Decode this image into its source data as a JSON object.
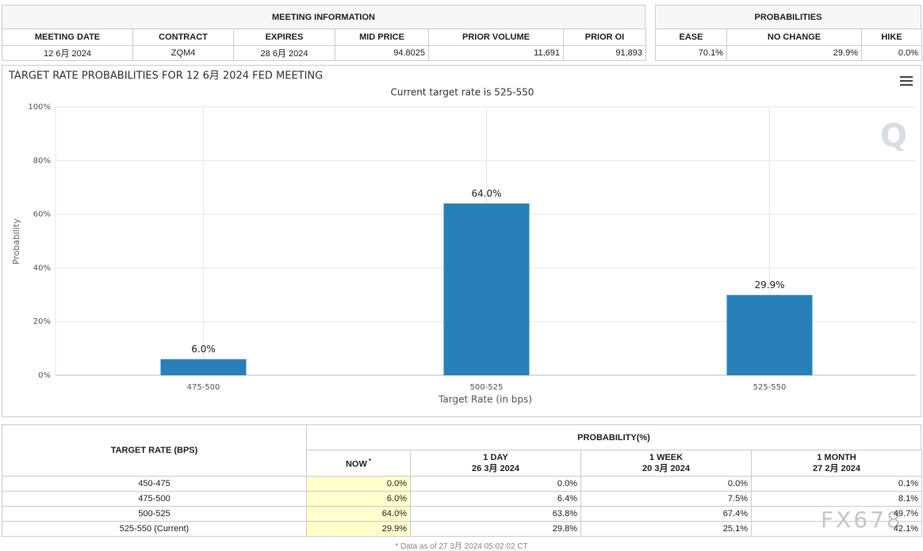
{
  "meeting_info": {
    "title": "MEETING INFORMATION",
    "headers": [
      "MEETING DATE",
      "CONTRACT",
      "EXPIRES",
      "MID PRICE",
      "PRIOR VOLUME",
      "PRIOR OI"
    ],
    "row": [
      "12 6月 2024",
      "ZQM4",
      "28 6月 2024",
      "94.8025",
      "11,691",
      "91,893"
    ]
  },
  "probabilities": {
    "title": "PROBABILITIES",
    "headers": [
      "EASE",
      "NO CHANGE",
      "HIKE"
    ],
    "row": [
      "70.1%",
      "29.9%",
      "0.0%"
    ]
  },
  "chart_data": {
    "type": "bar",
    "title": "TARGET RATE PROBABILITIES FOR 12 6月 2024 FED MEETING",
    "subtitle": "Current target rate is 525-550",
    "x_label": "Target Rate (in bps)",
    "y_label": "Probability",
    "categories": [
      "475-500",
      "500-525",
      "525-550"
    ],
    "values": [
      6.0,
      64.0,
      29.9
    ],
    "value_labels": [
      "6.0%",
      "64.0%",
      "29.9%"
    ],
    "color": "#2980b9",
    "ylim": [
      0,
      100
    ],
    "yticks": [
      {
        "value": 0,
        "label": "0%"
      },
      {
        "value": 20,
        "label": "20%"
      },
      {
        "value": 40,
        "label": "40%"
      },
      {
        "value": 60,
        "label": "60%"
      },
      {
        "value": 80,
        "label": "80%"
      },
      {
        "value": 100,
        "label": "100%"
      }
    ],
    "grid": true
  },
  "probability_table": {
    "row_header": "TARGET RATE (BPS)",
    "title": "PROBABILITY(%)",
    "columns": [
      {
        "label": "NOW",
        "note": "*"
      },
      {
        "label": "1 DAY",
        "date": "26 3月 2024"
      },
      {
        "label": "1 WEEK",
        "date": "20 3月 2024"
      },
      {
        "label": "1 MONTH",
        "date": "27 2月 2024"
      }
    ],
    "rows": [
      {
        "rate": "450-475",
        "values": [
          "0.0%",
          "0.0%",
          "0.0%",
          "0.1%"
        ]
      },
      {
        "rate": "475-500",
        "values": [
          "6.0%",
          "6.4%",
          "7.5%",
          "8.1%"
        ]
      },
      {
        "rate": "500-525",
        "values": [
          "64.0%",
          "63.8%",
          "67.4%",
          "49.7%"
        ]
      },
      {
        "rate": "525-550 (Current)",
        "values": [
          "29.9%",
          "29.8%",
          "25.1%",
          "42.1%"
        ]
      }
    ],
    "footnote": "* Data as of 27 3月 2024 05:02:02 CT"
  },
  "watermark": "FX678"
}
